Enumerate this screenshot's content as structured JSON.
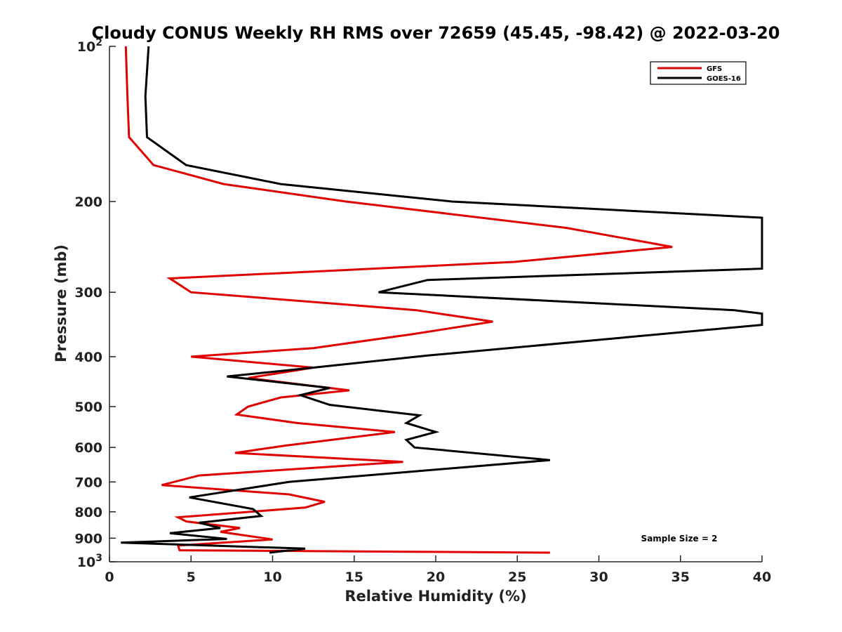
{
  "chart_data": {
    "type": "line",
    "title": "Cloudy CONUS Weekly RH RMS over 72659 (45.45, -98.42) @ 2022-03-20",
    "xlabel": "Relative Humidity (%)",
    "ylabel": "Pressure (mb)",
    "xlim": [
      0,
      40
    ],
    "ylim": [
      100,
      1000
    ],
    "y_scale": "log",
    "y_reversed": true,
    "grid": false,
    "legend_position": "top-right",
    "x_ticks": [
      {
        "value": 0,
        "label": "0"
      },
      {
        "value": 5,
        "label": "5"
      },
      {
        "value": 10,
        "label": "10"
      },
      {
        "value": 15,
        "label": "15"
      },
      {
        "value": 20,
        "label": "20"
      },
      {
        "value": 25,
        "label": "25"
      },
      {
        "value": 30,
        "label": "30"
      },
      {
        "value": 35,
        "label": "35"
      },
      {
        "value": 40,
        "label": "40"
      }
    ],
    "y_ticks": [
      {
        "value": 100,
        "label": "10",
        "sup": "2"
      },
      {
        "value": 200,
        "label": "200",
        "sup": ""
      },
      {
        "value": 300,
        "label": "300",
        "sup": ""
      },
      {
        "value": 400,
        "label": "400",
        "sup": ""
      },
      {
        "value": 500,
        "label": "500",
        "sup": ""
      },
      {
        "value": 600,
        "label": "600",
        "sup": ""
      },
      {
        "value": 700,
        "label": "700",
        "sup": ""
      },
      {
        "value": 800,
        "label": "800",
        "sup": ""
      },
      {
        "value": 900,
        "label": "900",
        "sup": ""
      },
      {
        "value": 1000,
        "label": "10",
        "sup": "3"
      }
    ],
    "series": [
      {
        "name": "GFS",
        "color": "#e00000",
        "points": [
          [
            1.0,
            100
          ],
          [
            1.1,
            125
          ],
          [
            1.2,
            150
          ],
          [
            2.7,
            170
          ],
          [
            7.0,
            185
          ],
          [
            14.5,
            200
          ],
          [
            28.0,
            225
          ],
          [
            34.5,
            245
          ],
          [
            24.8,
            262
          ],
          [
            3.7,
            282
          ],
          [
            5.0,
            300
          ],
          [
            18.8,
            325
          ],
          [
            23.5,
            342
          ],
          [
            18.5,
            362
          ],
          [
            12.5,
            385
          ],
          [
            5.0,
            400
          ],
          [
            12.5,
            420
          ],
          [
            8.5,
            440
          ],
          [
            14.7,
            465
          ],
          [
            10.5,
            480
          ],
          [
            8.5,
            500
          ],
          [
            7.8,
            518
          ],
          [
            11.5,
            538
          ],
          [
            17.5,
            560
          ],
          [
            10.8,
            595
          ],
          [
            7.7,
            615
          ],
          [
            18.0,
            640
          ],
          [
            5.5,
            680
          ],
          [
            3.2,
            710
          ],
          [
            11.0,
            740
          ],
          [
            13.2,
            765
          ],
          [
            12.0,
            785
          ],
          [
            4.2,
            820
          ],
          [
            4.7,
            835
          ],
          [
            8.0,
            860
          ],
          [
            6.8,
            875
          ],
          [
            10.0,
            905
          ],
          [
            4.2,
            930
          ],
          [
            4.3,
            950
          ],
          [
            27.0,
            960
          ]
        ]
      },
      {
        "name": "GOES-16",
        "color": "#000000",
        "points": [
          [
            2.4,
            100
          ],
          [
            2.2,
            125
          ],
          [
            2.3,
            150
          ],
          [
            4.7,
            170
          ],
          [
            10.5,
            185
          ],
          [
            21.0,
            200
          ],
          [
            40.0,
            215
          ],
          [
            40.0,
            270
          ],
          [
            19.5,
            284
          ],
          [
            16.5,
            300
          ],
          [
            38.3,
            325
          ],
          [
            40.0,
            330
          ],
          [
            40.0,
            347
          ],
          [
            19.5,
            398
          ],
          [
            12.5,
            420
          ],
          [
            7.2,
            437
          ],
          [
            13.5,
            460
          ],
          [
            11.7,
            475
          ],
          [
            13.5,
            496
          ],
          [
            19.0,
            520
          ],
          [
            18.2,
            538
          ],
          [
            20.0,
            560
          ],
          [
            18.2,
            580
          ],
          [
            18.7,
            600
          ],
          [
            27.0,
            635
          ],
          [
            11.0,
            700
          ],
          [
            4.9,
            750
          ],
          [
            8.8,
            790
          ],
          [
            9.3,
            815
          ],
          [
            5.5,
            840
          ],
          [
            6.8,
            860
          ],
          [
            3.7,
            880
          ],
          [
            7.2,
            903
          ],
          [
            0.7,
            918
          ],
          [
            12.0,
            943
          ],
          [
            9.8,
            960
          ]
        ]
      }
    ],
    "annotation": "Sample Size = 2"
  }
}
